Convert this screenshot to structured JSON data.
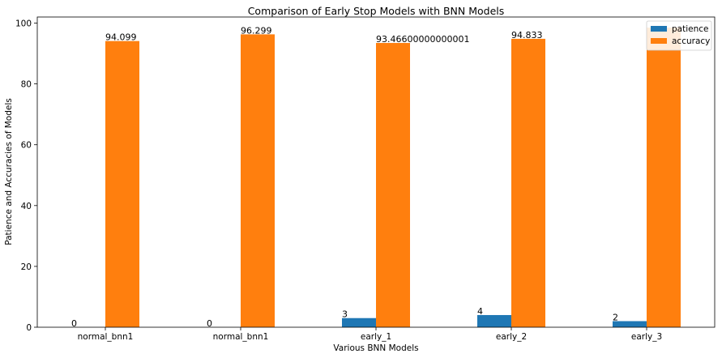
{
  "chart_data": {
    "type": "bar",
    "title": "Comparison of Early Stop Models with BNN Models",
    "xlabel": "Various BNN Models",
    "ylabel": "Patience and Accuracies of Models",
    "categories": [
      "normal_bnn1",
      "normal_bnn1",
      "early_1",
      "early_2",
      "early_3"
    ],
    "series": [
      {
        "name": "patience",
        "color": "#1f77b4",
        "values": [
          0,
          0,
          3,
          4,
          2
        ],
        "labels": [
          "0",
          "0",
          "3",
          "4",
          "2"
        ]
      },
      {
        "name": "accuracy",
        "color": "#ff7f0e",
        "values": [
          94.099,
          96.299,
          93.46600000000001,
          94.833,
          98.5
        ],
        "labels": [
          "94.099",
          "96.299",
          "93.46600000000001",
          "94.833",
          ""
        ]
      }
    ],
    "ylim": [
      0,
      102
    ],
    "yticks": [
      0,
      20,
      40,
      60,
      80,
      100
    ],
    "legend_position": "top-right",
    "grid": false
  }
}
